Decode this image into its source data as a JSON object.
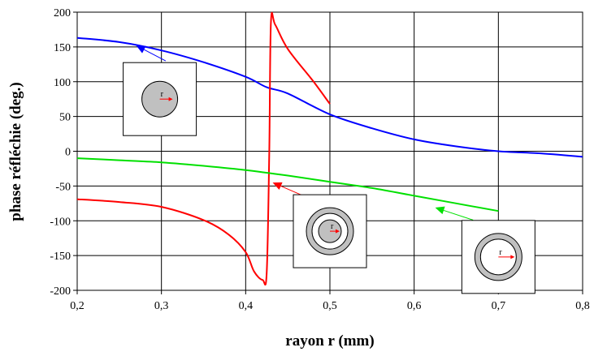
{
  "chart_data": {
    "type": "line",
    "xlabel": "rayon r (mm)",
    "ylabel": "phase réfléchie (deg.)",
    "xlim": [
      0.2,
      0.8
    ],
    "ylim": [
      -200,
      200
    ],
    "x_ticks": [
      "0,2",
      "0,3",
      "0,4",
      "0,5",
      "0,6",
      "0,7",
      "0,8"
    ],
    "y_ticks": [
      "200",
      "150",
      "100",
      "50",
      "0",
      "-50",
      "-100",
      "-150",
      "-200"
    ],
    "grid": true,
    "legend": "none",
    "series": [
      {
        "color": "#0000ff",
        "points": [
          [
            0.2,
            163
          ],
          [
            0.25,
            157
          ],
          [
            0.3,
            145
          ],
          [
            0.35,
            128
          ],
          [
            0.4,
            107
          ],
          [
            0.425,
            92
          ],
          [
            0.45,
            83
          ],
          [
            0.5,
            53
          ],
          [
            0.55,
            33
          ],
          [
            0.6,
            17
          ],
          [
            0.65,
            7
          ],
          [
            0.7,
            0
          ],
          [
            0.75,
            -3
          ],
          [
            0.8,
            -8
          ]
        ]
      },
      {
        "color": "#ff0000",
        "points": [
          [
            0.2,
            -69
          ],
          [
            0.25,
            -73
          ],
          [
            0.3,
            -80
          ],
          [
            0.35,
            -99
          ],
          [
            0.38,
            -120
          ],
          [
            0.4,
            -145
          ],
          [
            0.41,
            -173
          ],
          [
            0.42,
            -185
          ],
          [
            0.425,
            -175
          ],
          [
            0.428,
            0
          ],
          [
            0.43,
            185
          ],
          [
            0.435,
            182
          ],
          [
            0.45,
            147
          ],
          [
            0.48,
            101
          ],
          [
            0.5,
            68
          ]
        ]
      },
      {
        "color": "#00e000",
        "points": [
          [
            0.2,
            -10
          ],
          [
            0.25,
            -13
          ],
          [
            0.3,
            -16
          ],
          [
            0.35,
            -21
          ],
          [
            0.4,
            -27
          ],
          [
            0.45,
            -35
          ],
          [
            0.5,
            -44
          ],
          [
            0.55,
            -53
          ],
          [
            0.6,
            -64
          ],
          [
            0.65,
            -75
          ],
          [
            0.7,
            -86
          ]
        ]
      }
    ],
    "arrows": [
      {
        "color": "#0000ff",
        "from": [
          0.305,
          130
        ],
        "to": [
          0.27,
          152
        ]
      },
      {
        "color": "#ff0000",
        "from": [
          0.472,
          -66
        ],
        "to": [
          0.432,
          -45
        ]
      },
      {
        "color": "#00e000",
        "from": [
          0.67,
          -99
        ],
        "to": [
          0.625,
          -81
        ]
      }
    ],
    "insets": [
      {
        "kind": "disc",
        "label": "r",
        "center": [
          0.298,
          75
        ]
      },
      {
        "kind": "disc-in-ring",
        "label": "r",
        "center": [
          0.5,
          -115
        ]
      },
      {
        "kind": "ring",
        "label": "r",
        "center": [
          0.7,
          -152
        ]
      }
    ]
  }
}
